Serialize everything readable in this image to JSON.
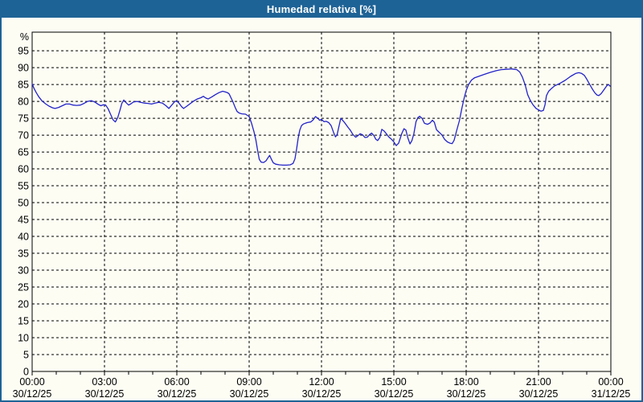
{
  "window": {
    "title": "Humedad relativa [%]"
  },
  "colors": {
    "titlebar": "#1e6396",
    "frame": "#1e6396",
    "background": "#fdfdf4",
    "plot_border": "#000000",
    "grid": "#000000",
    "line": "#2222c8",
    "label_text": "#000000",
    "title_text": "#ffffff"
  },
  "chart_data": {
    "type": "line",
    "title": "Humedad relativa [%]",
    "y_unit": "%",
    "ylim": [
      0,
      100.5
    ],
    "xlim_hours": [
      0,
      24
    ],
    "grid": "dashed",
    "y_ticks": [
      95,
      90,
      85,
      80,
      75,
      70,
      65,
      60,
      55,
      50,
      45,
      40,
      35,
      30,
      25,
      20,
      15,
      10,
      5,
      0
    ],
    "x_ticks": [
      {
        "hour": 0,
        "time": "00:00",
        "date": "30/12/25"
      },
      {
        "hour": 3,
        "time": "03:00",
        "date": "30/12/25"
      },
      {
        "hour": 6,
        "time": "06:00",
        "date": "30/12/25"
      },
      {
        "hour": 9,
        "time": "09:00",
        "date": "30/12/25"
      },
      {
        "hour": 12,
        "time": "12:00",
        "date": "30/12/25"
      },
      {
        "hour": 15,
        "time": "15:00",
        "date": "30/12/25"
      },
      {
        "hour": 18,
        "time": "18:00",
        "date": "30/12/25"
      },
      {
        "hour": 21,
        "time": "21:00",
        "date": "30/12/25"
      },
      {
        "hour": 24,
        "time": "00:00",
        "date": "31/12/25"
      }
    ],
    "minor_x_tick_every_hours": 1,
    "series": [
      {
        "name": "Humedad relativa",
        "color": "#2222c8",
        "points": [
          [
            0.0,
            85.2
          ],
          [
            0.08,
            83.8
          ],
          [
            0.17,
            82.6
          ],
          [
            0.27,
            81.4
          ],
          [
            0.4,
            80.2
          ],
          [
            0.55,
            79.3
          ],
          [
            0.7,
            78.6
          ],
          [
            0.85,
            78.1
          ],
          [
            0.95,
            77.9
          ],
          [
            1.1,
            78.2
          ],
          [
            1.25,
            78.7
          ],
          [
            1.4,
            79.2
          ],
          [
            1.55,
            79.2
          ],
          [
            1.7,
            78.9
          ],
          [
            1.85,
            78.8
          ],
          [
            2.0,
            78.9
          ],
          [
            2.15,
            79.4
          ],
          [
            2.3,
            80.0
          ],
          [
            2.45,
            80.2
          ],
          [
            2.6,
            79.8
          ],
          [
            2.75,
            79.1
          ],
          [
            2.85,
            78.7
          ],
          [
            2.95,
            79.0
          ],
          [
            3.05,
            78.9
          ],
          [
            3.15,
            77.8
          ],
          [
            3.25,
            76.2
          ],
          [
            3.35,
            74.6
          ],
          [
            3.45,
            73.9
          ],
          [
            3.55,
            75.2
          ],
          [
            3.65,
            77.6
          ],
          [
            3.72,
            79.4
          ],
          [
            3.8,
            80.4
          ],
          [
            3.9,
            79.6
          ],
          [
            4.0,
            78.9
          ],
          [
            4.1,
            79.3
          ],
          [
            4.2,
            79.8
          ],
          [
            4.35,
            80.0
          ],
          [
            4.5,
            79.7
          ],
          [
            4.65,
            79.5
          ],
          [
            4.8,
            79.4
          ],
          [
            4.95,
            79.2
          ],
          [
            5.1,
            79.5
          ],
          [
            5.25,
            79.7
          ],
          [
            5.4,
            79.5
          ],
          [
            5.55,
            78.7
          ],
          [
            5.67,
            77.9
          ],
          [
            5.8,
            79.0
          ],
          [
            5.92,
            80.0
          ],
          [
            6.0,
            80.1
          ],
          [
            6.1,
            79.4
          ],
          [
            6.2,
            78.4
          ],
          [
            6.28,
            77.9
          ],
          [
            6.4,
            78.5
          ],
          [
            6.55,
            79.3
          ],
          [
            6.7,
            80.1
          ],
          [
            6.85,
            80.7
          ],
          [
            7.0,
            81.1
          ],
          [
            7.1,
            81.5
          ],
          [
            7.2,
            81.0
          ],
          [
            7.3,
            80.7
          ],
          [
            7.45,
            81.3
          ],
          [
            7.6,
            82.0
          ],
          [
            7.75,
            82.6
          ],
          [
            7.9,
            83.0
          ],
          [
            8.0,
            82.8
          ],
          [
            8.1,
            82.6
          ],
          [
            8.17,
            82.2
          ],
          [
            8.25,
            81.0
          ],
          [
            8.33,
            79.8
          ],
          [
            8.42,
            78.2
          ],
          [
            8.5,
            77.0
          ],
          [
            8.6,
            76.5
          ],
          [
            8.7,
            76.3
          ],
          [
            8.85,
            76.2
          ],
          [
            9.0,
            75.5
          ],
          [
            9.1,
            73.5
          ],
          [
            9.2,
            71.0
          ],
          [
            9.28,
            68.5
          ],
          [
            9.35,
            65.5
          ],
          [
            9.42,
            62.8
          ],
          [
            9.5,
            62.0
          ],
          [
            9.6,
            61.9
          ],
          [
            9.7,
            62.4
          ],
          [
            9.78,
            63.3
          ],
          [
            9.85,
            64.0
          ],
          [
            9.92,
            62.9
          ],
          [
            10.0,
            61.8
          ],
          [
            10.1,
            61.4
          ],
          [
            10.25,
            61.2
          ],
          [
            10.4,
            61.1
          ],
          [
            10.55,
            61.1
          ],
          [
            10.7,
            61.2
          ],
          [
            10.82,
            61.6
          ],
          [
            10.9,
            63.0
          ],
          [
            10.97,
            66.0
          ],
          [
            11.03,
            69.0
          ],
          [
            11.1,
            71.5
          ],
          [
            11.17,
            72.8
          ],
          [
            11.25,
            73.3
          ],
          [
            11.4,
            73.7
          ],
          [
            11.55,
            73.9
          ],
          [
            11.65,
            74.5
          ],
          [
            11.75,
            75.5
          ],
          [
            11.85,
            75.0
          ],
          [
            11.92,
            74.4
          ],
          [
            12.0,
            74.7
          ],
          [
            12.1,
            74.0
          ],
          [
            12.2,
            74.1
          ],
          [
            12.3,
            73.7
          ],
          [
            12.4,
            72.8
          ],
          [
            12.5,
            70.8
          ],
          [
            12.58,
            69.5
          ],
          [
            12.65,
            70.2
          ],
          [
            12.72,
            72.5
          ],
          [
            12.8,
            75.0
          ],
          [
            12.9,
            74.2
          ],
          [
            13.0,
            73.3
          ],
          [
            13.1,
            72.3
          ],
          [
            13.2,
            71.4
          ],
          [
            13.3,
            70.2
          ],
          [
            13.42,
            69.4
          ],
          [
            13.52,
            69.9
          ],
          [
            13.6,
            70.4
          ],
          [
            13.7,
            70.1
          ],
          [
            13.8,
            69.3
          ],
          [
            13.9,
            69.4
          ],
          [
            14.0,
            70.2
          ],
          [
            14.08,
            70.6
          ],
          [
            14.17,
            69.9
          ],
          [
            14.25,
            68.8
          ],
          [
            14.33,
            68.4
          ],
          [
            14.42,
            69.3
          ],
          [
            14.5,
            71.7
          ],
          [
            14.6,
            71.2
          ],
          [
            14.7,
            70.3
          ],
          [
            14.8,
            69.4
          ],
          [
            14.9,
            68.8
          ],
          [
            15.0,
            68.0
          ],
          [
            15.1,
            66.9
          ],
          [
            15.2,
            67.6
          ],
          [
            15.33,
            70.5
          ],
          [
            15.42,
            71.9
          ],
          [
            15.5,
            71.5
          ],
          [
            15.58,
            69.2
          ],
          [
            15.67,
            67.4
          ],
          [
            15.75,
            68.4
          ],
          [
            15.83,
            70.4
          ],
          [
            15.92,
            74.0
          ],
          [
            16.0,
            75.2
          ],
          [
            16.07,
            75.6
          ],
          [
            16.17,
            75.0
          ],
          [
            16.27,
            73.5
          ],
          [
            16.4,
            73.2
          ],
          [
            16.5,
            73.6
          ],
          [
            16.6,
            74.4
          ],
          [
            16.68,
            73.8
          ],
          [
            16.77,
            71.6
          ],
          [
            16.9,
            70.7
          ],
          [
            17.0,
            70.0
          ],
          [
            17.1,
            68.8
          ],
          [
            17.22,
            68.0
          ],
          [
            17.33,
            67.6
          ],
          [
            17.42,
            67.5
          ],
          [
            17.5,
            68.5
          ],
          [
            17.6,
            71.2
          ],
          [
            17.72,
            74.3
          ],
          [
            17.82,
            77.9
          ],
          [
            17.92,
            81.1
          ],
          [
            18.0,
            83.2
          ],
          [
            18.1,
            85.0
          ],
          [
            18.22,
            86.3
          ],
          [
            18.35,
            87.0
          ],
          [
            18.55,
            87.5
          ],
          [
            18.75,
            88.0
          ],
          [
            19.0,
            88.6
          ],
          [
            19.25,
            89.1
          ],
          [
            19.45,
            89.4
          ],
          [
            19.65,
            89.5
          ],
          [
            19.9,
            89.6
          ],
          [
            20.1,
            89.4
          ],
          [
            20.22,
            88.7
          ],
          [
            20.33,
            87.2
          ],
          [
            20.45,
            84.8
          ],
          [
            20.55,
            82.0
          ],
          [
            20.65,
            80.4
          ],
          [
            20.77,
            79.0
          ],
          [
            20.9,
            77.9
          ],
          [
            21.0,
            77.5
          ],
          [
            21.1,
            77.1
          ],
          [
            21.2,
            77.3
          ],
          [
            21.27,
            79.0
          ],
          [
            21.33,
            81.7
          ],
          [
            21.42,
            83.0
          ],
          [
            21.55,
            83.9
          ],
          [
            21.67,
            84.6
          ],
          [
            21.9,
            85.4
          ],
          [
            22.1,
            86.2
          ],
          [
            22.33,
            87.4
          ],
          [
            22.55,
            88.3
          ],
          [
            22.67,
            88.5
          ],
          [
            22.78,
            88.3
          ],
          [
            22.9,
            87.7
          ],
          [
            23.0,
            86.6
          ],
          [
            23.1,
            85.3
          ],
          [
            23.22,
            83.8
          ],
          [
            23.33,
            82.6
          ],
          [
            23.42,
            81.9
          ],
          [
            23.5,
            81.7
          ],
          [
            23.6,
            82.3
          ],
          [
            23.72,
            83.5
          ],
          [
            23.83,
            84.6
          ],
          [
            23.9,
            85.0
          ],
          [
            23.97,
            84.5
          ]
        ]
      }
    ]
  }
}
